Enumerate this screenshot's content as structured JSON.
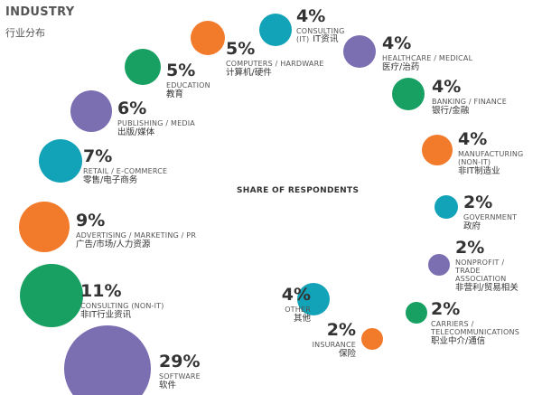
{
  "header": {
    "title_en": "INDUSTRY",
    "title_zh": "行业分布"
  },
  "chart_data": {
    "type": "bubble",
    "title": "SHARE OF RESPONDENTS",
    "unit": "%",
    "colors": {
      "purple": "#7b6fb2",
      "teal": "#13a3b8",
      "green": "#17a062",
      "orange": "#f27a2b"
    },
    "items": [
      {
        "en": "CONSULTING (IT)",
        "zh": "IT资讯",
        "value": 4,
        "pct": "4%",
        "color": "#13a3b8"
      },
      {
        "en": "HEALTHCARE / MEDICAL",
        "zh": "医疗/治药",
        "value": 4,
        "pct": "4%",
        "color": "#7b6fb2"
      },
      {
        "en": "BANKING / FINANCE",
        "zh": "银行/金融",
        "value": 4,
        "pct": "4%",
        "color": "#17a062"
      },
      {
        "en": "MANUFACTURING (NON-IT)",
        "zh": "非IT制造业",
        "value": 4,
        "pct": "4%",
        "color": "#f27a2b"
      },
      {
        "en": "GOVERNMENT",
        "zh": "政府",
        "value": 2,
        "pct": "2%",
        "color": "#13a3b8"
      },
      {
        "en": "NONPROFIT / TRADE ASSOCIATION",
        "zh": "非营利/贸易相关",
        "value": 2,
        "pct": "2%",
        "color": "#7b6fb2"
      },
      {
        "en": "CARRIERS / TELECOMMUNICATIONS",
        "zh": "职业中介/通信",
        "value": 2,
        "pct": "2%",
        "color": "#17a062"
      },
      {
        "en": "INSURANCE",
        "zh": "保险",
        "value": 2,
        "pct": "2%",
        "color": "#f27a2b"
      },
      {
        "en": "OTHER",
        "zh": "其他",
        "value": 4,
        "pct": "4%",
        "color": "#13a3b8"
      },
      {
        "en": "SOFTWARE",
        "zh": "软件",
        "value": 29,
        "pct": "29%",
        "color": "#7b6fb2"
      },
      {
        "en": "CONSULTING (NON-IT)",
        "zh": "非IT行业资讯",
        "value": 11,
        "pct": "11%",
        "color": "#17a062"
      },
      {
        "en": "ADVERTISING / MARKETING / PR",
        "zh": "广告/市场/人力资源",
        "value": 9,
        "pct": "9%",
        "color": "#f27a2b"
      },
      {
        "en": "RETAIL / E-COMMERCE",
        "zh": "零售/电子商务",
        "value": 7,
        "pct": "7%",
        "color": "#13a3b8"
      },
      {
        "en": "PUBLISHING / MEDIA",
        "zh": "出版/媒体",
        "value": 6,
        "pct": "6%",
        "color": "#7b6fb2"
      },
      {
        "en": "EDUCATION",
        "zh": "教育",
        "value": 5,
        "pct": "5%",
        "color": "#17a062"
      },
      {
        "en": "COMPUTERS / HARDWARE",
        "zh": "计算机/硬件",
        "value": 5,
        "pct": "5%",
        "color": "#f27a2b"
      }
    ]
  }
}
